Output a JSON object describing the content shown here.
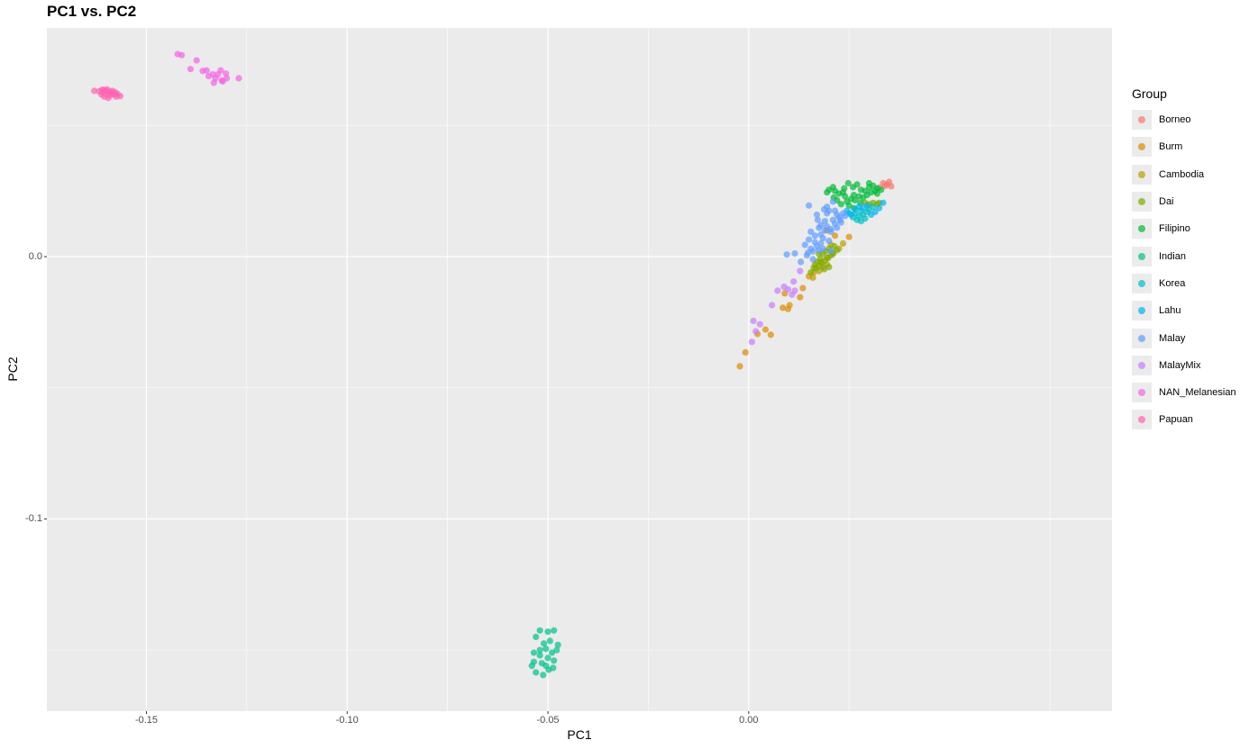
{
  "chart_data": {
    "type": "scatter",
    "title": "PC1 vs. PC2",
    "xlabel": "PC1",
    "ylabel": "PC2",
    "xlim": [
      -0.1748,
      0.0905
    ],
    "ylim": [
      -0.1733,
      0.0872
    ],
    "x_ticks": [
      -0.15,
      -0.1,
      -0.05,
      0.0
    ],
    "x_tick_labels": [
      "-0.15",
      "-0.10",
      "-0.05",
      "0.00"
    ],
    "y_ticks": [
      -0.1,
      0.0
    ],
    "y_tick_labels": [
      "-0.1",
      "0.0"
    ],
    "grid": true,
    "legend_title": "Group",
    "legend_position": "right",
    "series": [
      {
        "name": "Borneo",
        "color": "#F8766D",
        "points": [
          [
            0.0335,
            0.028
          ],
          [
            0.0345,
            0.0275
          ],
          [
            0.0355,
            0.0268
          ],
          [
            0.0325,
            0.0263
          ],
          [
            0.035,
            0.0285
          ],
          [
            0.034,
            0.027
          ]
        ]
      },
      {
        "name": "Burm",
        "color": "#DE8C00",
        "points": [
          [
            -0.0022,
            -0.0418
          ],
          [
            -0.0008,
            -0.0365
          ],
          [
            0.0022,
            -0.0295
          ],
          [
            0.0042,
            -0.0278
          ],
          [
            0.0055,
            -0.0298
          ],
          [
            0.0085,
            -0.0195
          ],
          [
            0.0098,
            -0.02
          ],
          [
            0.0102,
            -0.0185
          ],
          [
            0.009,
            -0.014
          ],
          [
            0.0128,
            -0.0155
          ],
          [
            0.0135,
            -0.012
          ],
          [
            0.015,
            -0.0075
          ],
          [
            0.0162,
            -0.006
          ],
          [
            0.018,
            -0.002
          ],
          [
            0.0195,
            -0.0005
          ],
          [
            0.025,
            0.0075
          ],
          [
            0.0195,
            0.01
          ],
          [
            0.0215,
            0.008
          ]
        ]
      },
      {
        "name": "Cambodia",
        "color": "#B79F00",
        "points": [
          [
            0.016,
            -0.008
          ],
          [
            0.0175,
            -0.0055
          ],
          [
            0.0185,
            -0.004
          ],
          [
            0.0195,
            -0.003
          ],
          [
            0.0165,
            -0.003
          ],
          [
            0.021,
            0.001
          ],
          [
            0.0225,
            0.003
          ],
          [
            0.0205,
            0.0045
          ],
          [
            0.0235,
            0.005
          ]
        ]
      },
      {
        "name": "Dai",
        "color": "#7CAE00",
        "points": [
          [
            0.0155,
            -0.006
          ],
          [
            0.0168,
            -0.0045
          ],
          [
            0.0175,
            -0.0035
          ],
          [
            0.0182,
            -0.0025
          ],
          [
            0.019,
            -0.0015
          ],
          [
            0.0198,
            -0.0005
          ],
          [
            0.0205,
            0.0005
          ],
          [
            0.0178,
            -0.001
          ],
          [
            0.0185,
            0.001
          ],
          [
            0.0192,
            0.002
          ],
          [
            0.017,
            -0.002
          ],
          [
            0.02,
            0.003
          ],
          [
            0.021,
            0.0015
          ],
          [
            0.0162,
            -0.0042
          ],
          [
            0.0188,
            -0.0048
          ],
          [
            0.0213,
            0.004
          ],
          [
            0.03,
            0.02
          ],
          [
            0.031,
            0.0205
          ],
          [
            0.032,
            0.02
          ],
          [
            0.0325,
            0.0205
          ],
          [
            0.029,
            0.0205
          ],
          [
            0.0175,
            0.001
          ],
          [
            0.02,
            -0.004
          ],
          [
            0.022,
            0.0025
          ]
        ]
      },
      {
        "name": "Filipino",
        "color": "#00BA38",
        "points": [
          [
            0.0225,
            0.024
          ],
          [
            0.0238,
            0.026
          ],
          [
            0.0248,
            0.028
          ],
          [
            0.026,
            0.0265
          ],
          [
            0.027,
            0.0275
          ],
          [
            0.028,
            0.0255
          ],
          [
            0.029,
            0.025
          ],
          [
            0.03,
            0.0265
          ],
          [
            0.031,
            0.027
          ],
          [
            0.032,
            0.026
          ],
          [
            0.0215,
            0.025
          ],
          [
            0.024,
            0.023
          ],
          [
            0.0255,
            0.022
          ],
          [
            0.0265,
            0.0215
          ],
          [
            0.0275,
            0.023
          ],
          [
            0.0285,
            0.0225
          ],
          [
            0.0295,
            0.0235
          ],
          [
            0.0305,
            0.0245
          ],
          [
            0.0315,
            0.025
          ],
          [
            0.02,
            0.0255
          ],
          [
            0.0195,
            0.0245
          ],
          [
            0.023,
            0.02
          ],
          [
            0.025,
            0.0195
          ],
          [
            0.0262,
            0.0185
          ],
          [
            0.022,
            0.0215
          ],
          [
            0.0235,
            0.0245
          ],
          [
            0.0262,
            0.0235
          ],
          [
            0.03,
            0.028
          ],
          [
            0.032,
            0.024
          ],
          [
            0.033,
            0.0255
          ],
          [
            0.021,
            0.0265
          ],
          [
            0.0245,
            0.021
          ],
          [
            0.0278,
            0.0205
          ],
          [
            0.0212,
            0.0225
          ]
        ]
      },
      {
        "name": "Indian",
        "color": "#00C08B",
        "points": [
          [
            -0.052,
            -0.1425
          ],
          [
            -0.05,
            -0.143
          ],
          [
            -0.0485,
            -0.1425
          ],
          [
            -0.053,
            -0.145
          ],
          [
            -0.051,
            -0.1475
          ],
          [
            -0.0495,
            -0.1465
          ],
          [
            -0.0475,
            -0.148
          ],
          [
            -0.0535,
            -0.151
          ],
          [
            -0.052,
            -0.152
          ],
          [
            -0.0505,
            -0.1495
          ],
          [
            -0.049,
            -0.151
          ],
          [
            -0.0535,
            -0.1545
          ],
          [
            -0.0515,
            -0.155
          ],
          [
            -0.05,
            -0.153
          ],
          [
            -0.0485,
            -0.154
          ],
          [
            -0.053,
            -0.1585
          ],
          [
            -0.0512,
            -0.1595
          ],
          [
            -0.0498,
            -0.1575
          ],
          [
            -0.054,
            -0.156
          ],
          [
            -0.0505,
            -0.156
          ],
          [
            -0.052,
            -0.15
          ],
          [
            -0.0487,
            -0.1568
          ],
          [
            -0.0478,
            -0.15
          ]
        ]
      },
      {
        "name": "Korea",
        "color": "#00BFC4",
        "points": [
          [
            0.0265,
            0.0165
          ],
          [
            0.0275,
            0.0155
          ],
          [
            0.0285,
            0.016
          ],
          [
            0.0295,
            0.017
          ],
          [
            0.028,
            0.0175
          ],
          [
            0.027,
            0.014
          ],
          [
            0.029,
            0.0145
          ],
          [
            0.03,
            0.018
          ],
          [
            0.031,
            0.019
          ],
          [
            0.026,
            0.015
          ],
          [
            0.028,
            0.0135
          ],
          [
            0.025,
            0.0165
          ]
        ]
      },
      {
        "name": "Lahu",
        "color": "#00B4EF",
        "points": [
          [
            0.0245,
            0.0175
          ],
          [
            0.0255,
            0.016
          ],
          [
            0.0265,
            0.018
          ],
          [
            0.0275,
            0.019
          ],
          [
            0.0285,
            0.0185
          ],
          [
            0.0295,
            0.0195
          ],
          [
            0.0305,
            0.016
          ],
          [
            0.0315,
            0.017
          ],
          [
            0.0325,
            0.0185
          ],
          [
            0.0335,
            0.0205
          ]
        ]
      },
      {
        "name": "Malay",
        "color": "#619CFF",
        "points": [
          [
            0.0095,
            0.0008
          ],
          [
            0.0115,
            0.0012
          ],
          [
            0.013,
            -0.002
          ],
          [
            0.014,
            0.0045
          ],
          [
            0.0145,
            0.0005
          ],
          [
            0.015,
            0.0065
          ],
          [
            0.0155,
            0.0095
          ],
          [
            0.016,
            0.002
          ],
          [
            0.0165,
            0.0055
          ],
          [
            0.017,
            0.004
          ],
          [
            0.0175,
            0.011
          ],
          [
            0.018,
            0.0085
          ],
          [
            0.0185,
            0.007
          ],
          [
            0.019,
            0.0135
          ],
          [
            0.0195,
            0.0115
          ],
          [
            0.02,
            0.006
          ],
          [
            0.0205,
            0.0095
          ],
          [
            0.021,
            0.014
          ],
          [
            0.0215,
            0.0175
          ],
          [
            0.022,
            0.011
          ],
          [
            0.0225,
            0.015
          ],
          [
            0.023,
            0.013
          ],
          [
            0.0235,
            0.0165
          ],
          [
            0.024,
            0.0155
          ],
          [
            0.015,
            0.0195
          ],
          [
            0.017,
            0.016
          ],
          [
            0.018,
            0.012
          ],
          [
            0.016,
            -0.001
          ],
          [
            0.0185,
            0.003
          ],
          [
            0.0205,
            0.002
          ],
          [
            0.02,
            0.0175
          ],
          [
            0.021,
            0.021
          ],
          [
            0.0195,
            0.0165
          ],
          [
            0.0215,
            0.0125
          ],
          [
            0.0165,
            0.008
          ],
          [
            0.0175,
            0.0025
          ],
          [
            0.0155,
            0.003
          ],
          [
            0.018,
            0.005
          ],
          [
            0.019,
            0.01
          ],
          [
            0.022,
            0.016
          ],
          [
            0.0228,
            0.014
          ],
          [
            0.0195,
            0.019
          ],
          [
            0.0205,
            0.0105
          ],
          [
            0.0148,
            0.0015
          ],
          [
            0.0172,
            0.014
          ],
          [
            0.0188,
            0.018
          ]
        ]
      },
      {
        "name": "MalayMix",
        "color": "#C77CFF",
        "points": [
          [
            0.0012,
            -0.0245
          ],
          [
            0.0028,
            -0.0258
          ],
          [
            0.0018,
            -0.0285
          ],
          [
            0.0008,
            -0.0325
          ],
          [
            0.0058,
            -0.0185
          ],
          [
            0.0072,
            -0.013
          ],
          [
            0.0088,
            -0.0115
          ],
          [
            0.0098,
            -0.0125
          ],
          [
            0.0115,
            -0.013
          ],
          [
            0.0112,
            -0.0095
          ],
          [
            0.0128,
            -0.0055
          ],
          [
            0.0108,
            -0.0145
          ]
        ]
      },
      {
        "name": "NAN_Melanesian",
        "color": "#F564E3",
        "points": [
          [
            -0.1422,
            0.0772
          ],
          [
            -0.1412,
            0.0768
          ],
          [
            -0.1375,
            0.0748
          ],
          [
            -0.139,
            0.0715
          ],
          [
            -0.136,
            0.0708
          ],
          [
            -0.135,
            0.071
          ],
          [
            -0.1335,
            0.0695
          ],
          [
            -0.1315,
            0.071
          ],
          [
            -0.1328,
            0.068
          ],
          [
            -0.1312,
            0.0672
          ],
          [
            -0.1345,
            0.0688
          ],
          [
            -0.1322,
            0.0695
          ],
          [
            -0.13,
            0.068
          ],
          [
            -0.1302,
            0.0698
          ],
          [
            -0.127,
            0.068
          ],
          [
            -0.1332,
            0.0663
          ],
          [
            -0.131,
            0.0668
          ]
        ]
      },
      {
        "name": "Papuan",
        "color": "#FF64B0",
        "points": [
          [
            -0.163,
            0.0632
          ],
          [
            -0.1618,
            0.063
          ],
          [
            -0.161,
            0.0628
          ],
          [
            -0.1605,
            0.0635
          ],
          [
            -0.1598,
            0.063
          ],
          [
            -0.1592,
            0.0628
          ],
          [
            -0.1585,
            0.0632
          ],
          [
            -0.1578,
            0.0627
          ],
          [
            -0.1572,
            0.062
          ],
          [
            -0.158,
            0.0618
          ],
          [
            -0.159,
            0.0615
          ],
          [
            -0.16,
            0.062
          ],
          [
            -0.1612,
            0.0618
          ],
          [
            -0.1595,
            0.0605
          ],
          [
            -0.1575,
            0.061
          ],
          [
            -0.1565,
            0.0612
          ],
          [
            -0.1605,
            0.061
          ],
          [
            -0.1585,
            0.0622
          ],
          [
            -0.161,
            0.0637
          ],
          [
            -0.1598,
            0.0638
          ]
        ]
      }
    ]
  }
}
